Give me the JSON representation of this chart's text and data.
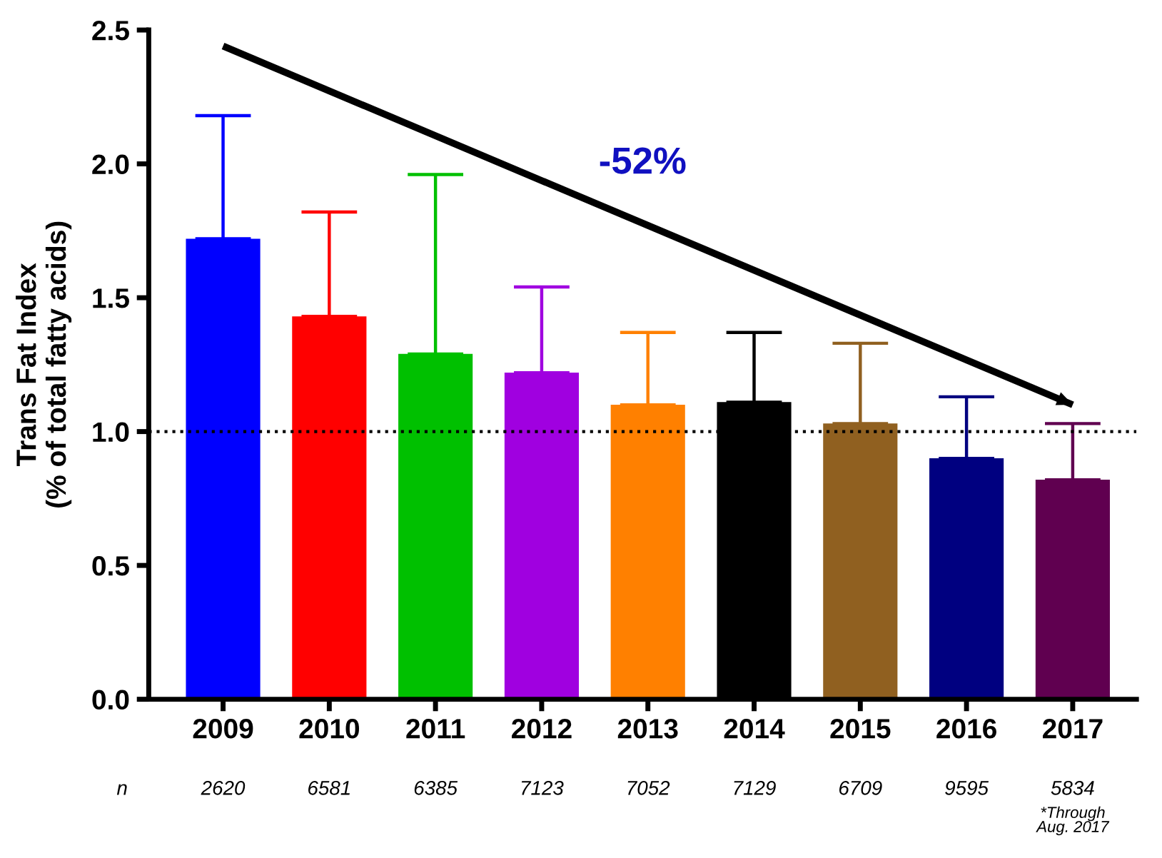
{
  "chart_data": {
    "type": "bar",
    "ylabel": "Trans Fat Index\n(% of total fatty acids)",
    "categories": [
      "2009",
      "2010",
      "2011",
      "2012",
      "2013",
      "2014",
      "2015",
      "2016",
      "2017"
    ],
    "series": [
      {
        "values": [
          1.72,
          1.43,
          1.29,
          1.22,
          1.1,
          1.11,
          1.03,
          0.9,
          0.82
        ],
        "colors": [
          "#0000ff",
          "#ff0000",
          "#00c000",
          "#a000e0",
          "#ff8000",
          "#000000",
          "#906020",
          "#000080",
          "#600050"
        ],
        "errors": [
          [
            1.72,
            2.18
          ],
          [
            1.43,
            1.82
          ],
          [
            1.29,
            1.96
          ],
          [
            1.22,
            1.54
          ],
          [
            1.1,
            1.37
          ],
          [
            1.11,
            1.37
          ],
          [
            1.03,
            1.33
          ],
          [
            0.9,
            1.13
          ],
          [
            0.82,
            1.03
          ]
        ]
      },
      {
        "type": "line",
        "color": "#000000",
        "values": [
          2.44,
          null,
          null,
          null,
          null,
          null,
          null,
          null,
          1.1
        ]
      }
    ],
    "ylim": [
      0,
      2.5
    ],
    "yticks": [
      {
        "value": 0,
        "label": "0.0"
      },
      0.5,
      {
        "value": 1,
        "label": "1.0"
      },
      1.5,
      {
        "value": 2,
        "label": "2.0"
      },
      2.5
    ],
    "ref_lines": [
      {
        "axis": "y",
        "value": 1,
        "line_style": "dotted",
        "color": "#000000"
      }
    ],
    "annotations": [
      "-52%",
      "n",
      "2620",
      "6581",
      "6385",
      "7123",
      "7052",
      "7129",
      "6709",
      "9595",
      "5834",
      "*Through\nAug. 2017"
    ],
    "grid": false,
    "legend": false
  }
}
